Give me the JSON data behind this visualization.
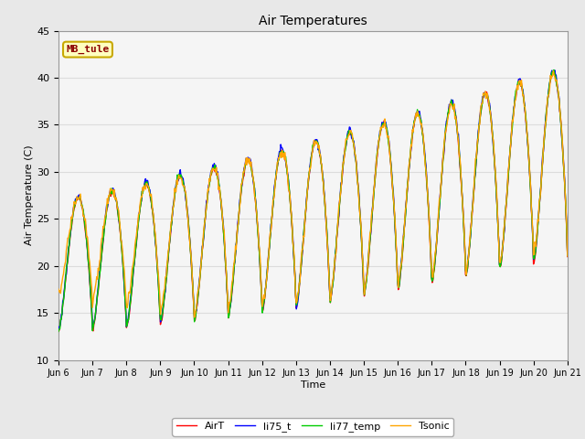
{
  "title": "Air Temperatures",
  "xlabel": "Time",
  "ylabel": "Air Temperature (C)",
  "ylim": [
    10,
    45
  ],
  "yticks": [
    10,
    15,
    20,
    25,
    30,
    35,
    40,
    45
  ],
  "annotation_text": "MB_tule",
  "annotation_color": "#8B0000",
  "annotation_bg": "#FFFFC0",
  "annotation_border": "#C8A800",
  "grid_color": "#DCDCDC",
  "bg_color": "#E8E8E8",
  "plot_bg": "#F5F5F5",
  "colors": {
    "AirT": "#FF0000",
    "li75_t": "#0000FF",
    "li77_temp": "#00CC00",
    "Tsonic": "#FFA500"
  },
  "legend_labels": [
    "AirT",
    "li75_t",
    "li77_temp",
    "Tsonic"
  ],
  "xtick_labels": [
    "Jun 6",
    "Jun 7",
    "Jun 8",
    "Jun 9",
    "Jun 10",
    "Jun 11",
    "Jun 12",
    "Jun 13",
    "Jun 14",
    "Jun 15",
    "Jun 16",
    "Jun 17",
    "Jun 18",
    "Jun 19",
    "Jun 20",
    "Jun 21"
  ],
  "n_days": 15,
  "points_per_day": 48
}
